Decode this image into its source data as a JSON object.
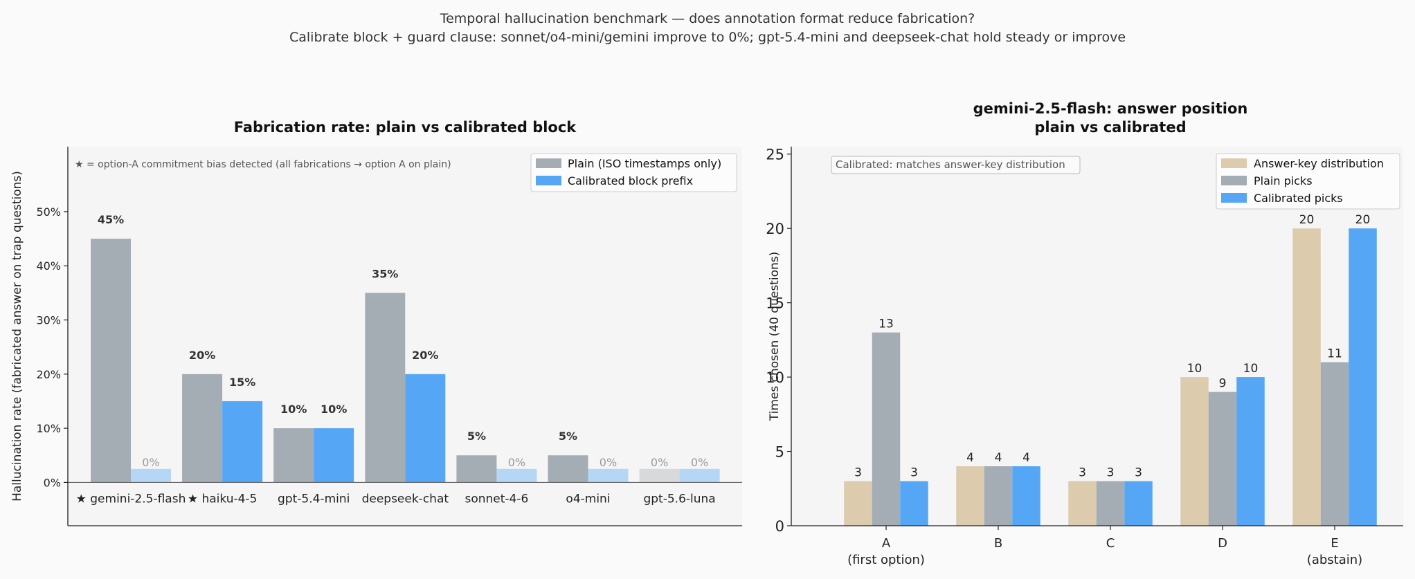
{
  "suptitle": {
    "line1": "Temporal hallucination benchmark — does annotation format reduce fabrication?",
    "line2": "Calibrate block + guard clause: sonnet/o4-mini/gemini improve to 0%; gpt-5.4-mini and deepseek-chat hold steady or improve"
  },
  "colors": {
    "plain": "#a4acb4",
    "calibrated": "#55a7f5",
    "calibrated_zero": "#b5d6f5",
    "plain_zero": "#d8d9da",
    "answer_key": "#dccbad",
    "panel_bg": "#f5f5f5"
  },
  "chart_data": [
    {
      "type": "bar",
      "title": "Fabrication rate: plain vs calibrated block",
      "ylabel": "Hallucination rate (fabricated answer on trap questions)",
      "xlabel": "",
      "ylim": [
        -8,
        62
      ],
      "yticks": [
        0,
        10,
        20,
        30,
        40,
        50
      ],
      "ytick_labels": [
        "0%",
        "10%",
        "20%",
        "30%",
        "40%",
        "50%"
      ],
      "grid": false,
      "legend_position": "top-right",
      "annotation": "★ = option-A commitment bias detected (all fabrications → option A on plain)",
      "categories": [
        "★ gemini-2.5-flash",
        "★ haiku-4-5",
        "gpt-5.4-mini",
        "deepseek-chat",
        "sonnet-4-6",
        "o4-mini",
        "gpt-5.6-luna"
      ],
      "series": [
        {
          "name": "Plain (ISO timestamps only)",
          "values": [
            45,
            20,
            10,
            35,
            5,
            5,
            0
          ],
          "labels": [
            "45%",
            "20%",
            "10%",
            "35%",
            "5%",
            "5%",
            "0%"
          ]
        },
        {
          "name": "Calibrated block prefix",
          "values": [
            0,
            15,
            10,
            20,
            0,
            0,
            0
          ],
          "labels": [
            "0%",
            "15%",
            "10%",
            "20%",
            "0%",
            "0%",
            "0%"
          ]
        }
      ]
    },
    {
      "type": "bar",
      "title": "gemini-2.5-flash: answer position",
      "subtitle": "plain vs calibrated",
      "ylabel": "Times chosen (40 questions)",
      "xlabel": "",
      "ylim": [
        0,
        25.5
      ],
      "yticks": [
        0,
        5,
        10,
        15,
        20,
        25
      ],
      "ytick_labels": [
        "0",
        "5",
        "10",
        "15",
        "20",
        "25"
      ],
      "grid": false,
      "legend_position": "top-right",
      "annotation": "Calibrated: matches answer-key distribution",
      "categories": [
        {
          "name": "A",
          "sub": "(first option)"
        },
        {
          "name": "B",
          "sub": ""
        },
        {
          "name": "C",
          "sub": ""
        },
        {
          "name": "D",
          "sub": ""
        },
        {
          "name": "E",
          "sub": "(abstain)"
        }
      ],
      "series": [
        {
          "name": "Answer-key distribution",
          "values": [
            3,
            4,
            3,
            10,
            20
          ]
        },
        {
          "name": "Plain picks",
          "values": [
            13,
            4,
            3,
            9,
            11
          ]
        },
        {
          "name": "Calibrated picks",
          "values": [
            3,
            4,
            3,
            10,
            20
          ]
        }
      ]
    }
  ]
}
